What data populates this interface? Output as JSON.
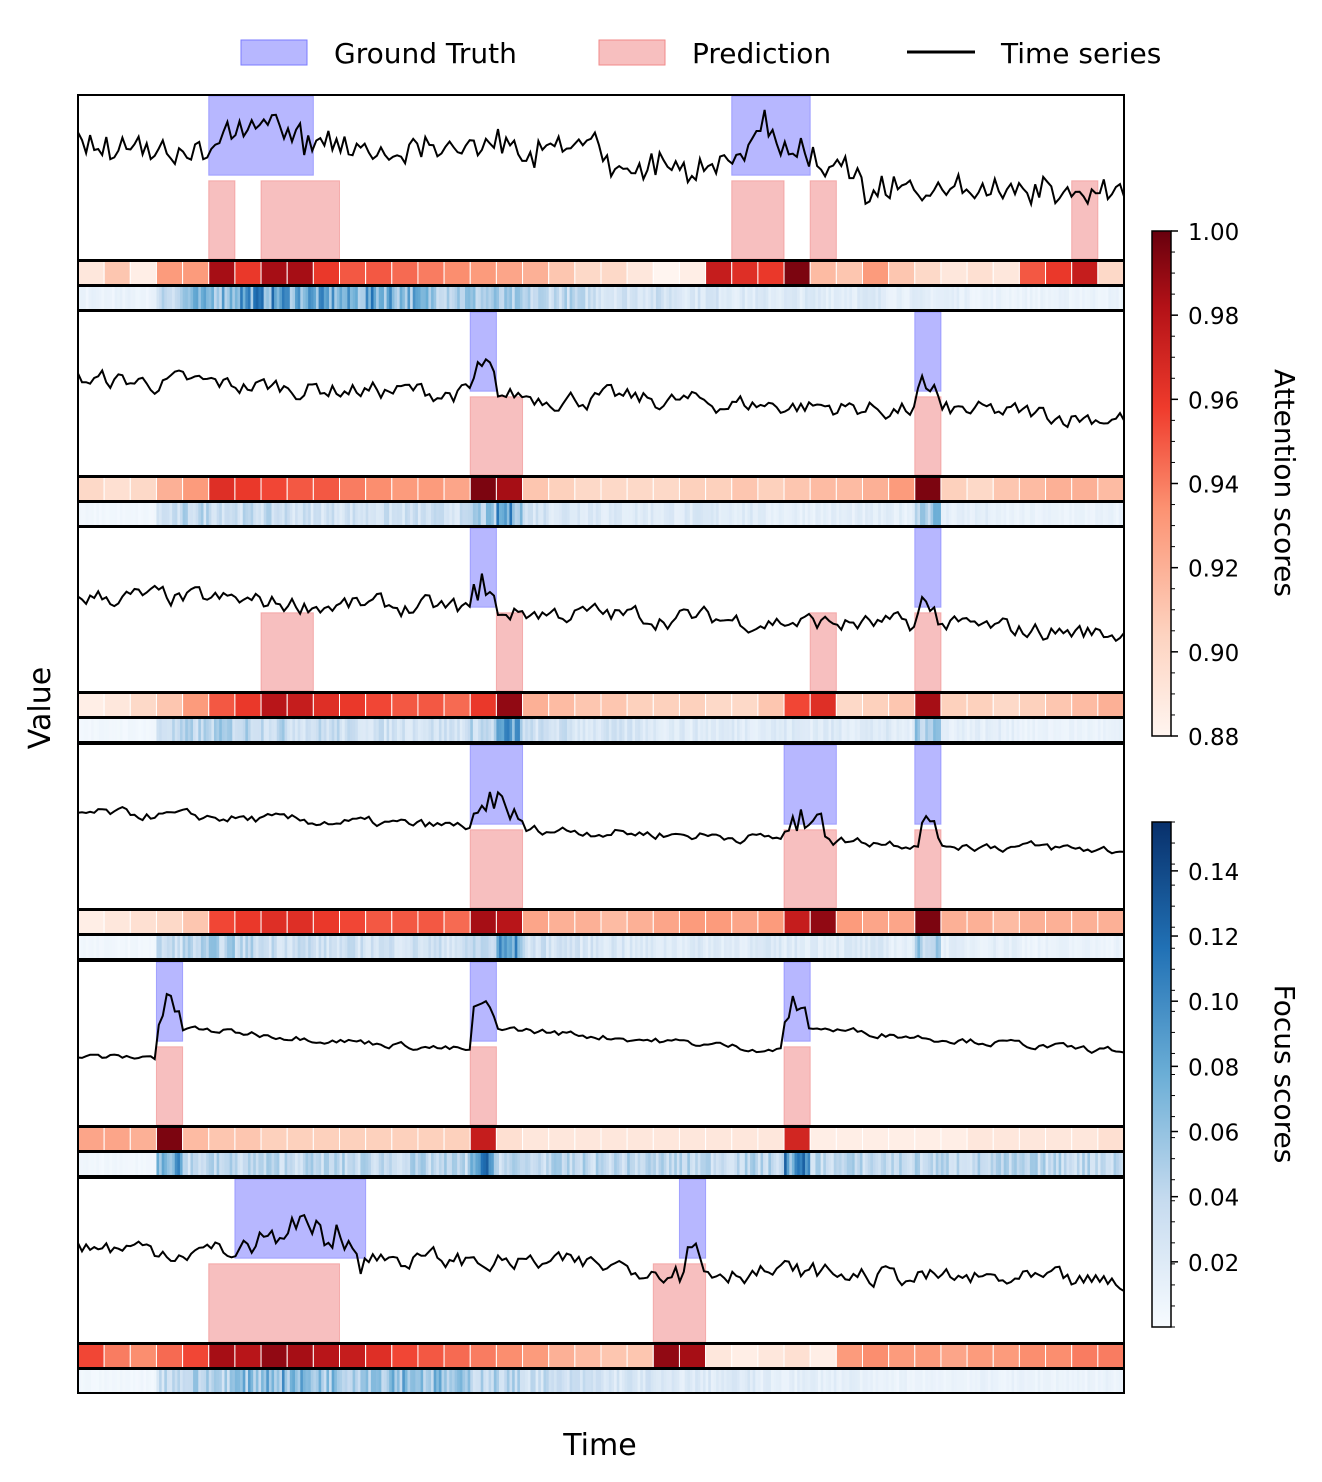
{
  "legend": {
    "ground_truth": "Ground Truth",
    "prediction": "Prediction",
    "time_series": "Time series"
  },
  "axes": {
    "xlabel": "Time",
    "ylabel": "Value"
  },
  "colorbars": {
    "attention": {
      "label": "Attention scores",
      "ticks": [
        "1.00",
        "0.98",
        "0.96",
        "0.94",
        "0.92",
        "0.90",
        "0.88"
      ],
      "range": [
        0.88,
        1.0
      ]
    },
    "focus": {
      "label": "Focus scores",
      "ticks": [
        "0.14",
        "0.12",
        "0.10",
        "0.08",
        "0.06",
        "0.04",
        "0.02"
      ],
      "range": [
        0.0,
        0.155
      ]
    }
  },
  "colors": {
    "ground_truth": "#7b7bff",
    "prediction": "#f08a8a",
    "series": "#000000"
  },
  "chart_data": {
    "type": "line",
    "x_range": [
      0,
      40
    ],
    "panels": [
      {
        "ground_truth": [
          [
            5,
            9
          ],
          [
            25,
            28
          ]
        ],
        "prediction": [
          [
            5,
            6
          ],
          [
            7,
            10
          ],
          [
            25,
            27
          ],
          [
            28,
            29
          ],
          [
            38,
            39
          ]
        ],
        "attention": [
          0.89,
          0.91,
          0.885,
          0.93,
          0.93,
          0.985,
          0.96,
          0.985,
          0.985,
          0.96,
          0.95,
          0.95,
          0.945,
          0.94,
          0.935,
          0.93,
          0.925,
          0.92,
          0.91,
          0.9,
          0.9,
          0.89,
          0.88,
          0.885,
          0.975,
          0.965,
          0.96,
          0.995,
          0.915,
          0.91,
          0.93,
          0.91,
          0.9,
          0.89,
          0.895,
          0.89,
          0.95,
          0.96,
          0.975,
          0.9
        ],
        "focus": [
          0.01,
          0.01,
          0.01,
          0.045,
          0.06,
          0.07,
          0.09,
          0.085,
          0.08,
          0.075,
          0.07,
          0.08,
          0.07,
          0.06,
          0.055,
          0.05,
          0.045,
          0.04,
          0.04,
          0.035,
          0.03,
          0.03,
          0.03,
          0.025,
          0.025,
          0.02,
          0.02,
          0.02,
          0.02,
          0.02,
          0.02,
          0.015,
          0.015,
          0.015,
          0.01,
          0.01,
          0.01,
          0.01,
          0.01,
          0.01
        ]
      },
      {
        "ground_truth": [
          [
            15,
            16
          ],
          [
            32,
            33
          ]
        ],
        "prediction": [
          [
            15,
            17
          ],
          [
            32,
            33
          ]
        ],
        "attention": [
          0.9,
          0.895,
          0.9,
          0.92,
          0.93,
          0.965,
          0.96,
          0.955,
          0.95,
          0.95,
          0.94,
          0.935,
          0.93,
          0.93,
          0.925,
          0.995,
          0.985,
          0.91,
          0.905,
          0.9,
          0.9,
          0.9,
          0.9,
          0.905,
          0.905,
          0.91,
          0.905,
          0.91,
          0.915,
          0.915,
          0.92,
          0.93,
          0.995,
          0.905,
          0.9,
          0.91,
          0.915,
          0.92,
          0.92,
          0.915
        ],
        "focus": [
          0.005,
          0.005,
          0.005,
          0.03,
          0.04,
          0.04,
          0.035,
          0.035,
          0.03,
          0.03,
          0.03,
          0.03,
          0.03,
          0.03,
          0.03,
          0.05,
          0.08,
          0.03,
          0.025,
          0.025,
          0.02,
          0.02,
          0.02,
          0.02,
          0.02,
          0.02,
          0.015,
          0.015,
          0.015,
          0.015,
          0.015,
          0.015,
          0.06,
          0.015,
          0.015,
          0.01,
          0.01,
          0.01,
          0.01,
          0.01
        ]
      },
      {
        "ground_truth": [
          [
            15,
            16
          ],
          [
            32,
            33
          ]
        ],
        "prediction": [
          [
            7,
            9
          ],
          [
            16,
            17
          ],
          [
            28,
            29
          ],
          [
            32,
            33
          ]
        ],
        "attention": [
          0.885,
          0.89,
          0.9,
          0.91,
          0.93,
          0.95,
          0.96,
          0.98,
          0.975,
          0.965,
          0.96,
          0.955,
          0.95,
          0.95,
          0.945,
          0.96,
          0.99,
          0.92,
          0.915,
          0.91,
          0.91,
          0.905,
          0.905,
          0.905,
          0.9,
          0.9,
          0.91,
          0.955,
          0.965,
          0.9,
          0.905,
          0.91,
          0.985,
          0.905,
          0.905,
          0.9,
          0.905,
          0.91,
          0.915,
          0.92
        ],
        "focus": [
          0.005,
          0.005,
          0.005,
          0.035,
          0.04,
          0.045,
          0.045,
          0.04,
          0.035,
          0.035,
          0.03,
          0.03,
          0.03,
          0.03,
          0.03,
          0.04,
          0.08,
          0.03,
          0.03,
          0.025,
          0.025,
          0.025,
          0.02,
          0.02,
          0.02,
          0.02,
          0.02,
          0.02,
          0.02,
          0.02,
          0.02,
          0.015,
          0.06,
          0.015,
          0.015,
          0.015,
          0.01,
          0.01,
          0.01,
          0.01
        ]
      },
      {
        "ground_truth": [
          [
            15,
            17
          ],
          [
            27,
            29
          ],
          [
            32,
            33
          ]
        ],
        "prediction": [
          [
            15,
            17
          ],
          [
            27,
            29
          ],
          [
            32,
            33
          ]
        ],
        "attention": [
          0.885,
          0.89,
          0.895,
          0.9,
          0.91,
          0.955,
          0.96,
          0.965,
          0.965,
          0.96,
          0.955,
          0.95,
          0.95,
          0.95,
          0.945,
          0.985,
          0.98,
          0.925,
          0.92,
          0.92,
          0.915,
          0.92,
          0.925,
          0.93,
          0.93,
          0.925,
          0.93,
          0.975,
          0.99,
          0.93,
          0.925,
          0.925,
          0.995,
          0.92,
          0.92,
          0.915,
          0.92,
          0.92,
          0.92,
          0.92
        ],
        "focus": [
          0.005,
          0.005,
          0.005,
          0.035,
          0.04,
          0.045,
          0.04,
          0.035,
          0.035,
          0.03,
          0.03,
          0.03,
          0.03,
          0.03,
          0.03,
          0.04,
          0.08,
          0.03,
          0.03,
          0.025,
          0.025,
          0.02,
          0.02,
          0.02,
          0.02,
          0.02,
          0.02,
          0.02,
          0.02,
          0.02,
          0.02,
          0.015,
          0.05,
          0.015,
          0.015,
          0.015,
          0.01,
          0.01,
          0.01,
          0.01
        ]
      },
      {
        "ground_truth": [
          [
            3,
            4
          ],
          [
            15,
            16
          ],
          [
            27,
            28
          ]
        ],
        "prediction": [
          [
            3,
            4
          ],
          [
            15,
            16
          ],
          [
            27,
            28
          ]
        ],
        "attention": [
          0.925,
          0.925,
          0.92,
          0.995,
          0.915,
          0.91,
          0.91,
          0.905,
          0.905,
          0.905,
          0.905,
          0.905,
          0.905,
          0.905,
          0.905,
          0.975,
          0.895,
          0.89,
          0.89,
          0.89,
          0.89,
          0.89,
          0.89,
          0.89,
          0.89,
          0.89,
          0.89,
          0.97,
          0.885,
          0.885,
          0.885,
          0.885,
          0.885,
          0.885,
          0.89,
          0.89,
          0.89,
          0.89,
          0.89,
          0.895
        ],
        "focus": [
          0.005,
          0.005,
          0.005,
          0.09,
          0.04,
          0.04,
          0.04,
          0.04,
          0.04,
          0.04,
          0.04,
          0.04,
          0.04,
          0.04,
          0.04,
          0.09,
          0.04,
          0.04,
          0.04,
          0.04,
          0.04,
          0.04,
          0.04,
          0.04,
          0.04,
          0.04,
          0.04,
          0.09,
          0.04,
          0.04,
          0.04,
          0.04,
          0.04,
          0.04,
          0.04,
          0.04,
          0.04,
          0.04,
          0.04,
          0.04
        ]
      },
      {
        "ground_truth": [
          [
            6,
            11
          ],
          [
            23,
            24
          ]
        ],
        "prediction": [
          [
            5,
            10
          ],
          [
            22,
            24
          ]
        ],
        "attention": [
          0.955,
          0.94,
          0.935,
          0.945,
          0.955,
          0.985,
          0.98,
          0.99,
          0.985,
          0.98,
          0.975,
          0.965,
          0.955,
          0.95,
          0.945,
          0.94,
          0.935,
          0.93,
          0.92,
          0.915,
          0.91,
          0.91,
          0.99,
          0.985,
          0.89,
          0.885,
          0.89,
          0.895,
          0.885,
          0.93,
          0.935,
          0.93,
          0.93,
          0.925,
          0.93,
          0.93,
          0.935,
          0.935,
          0.94,
          0.94
        ],
        "focus": [
          0.005,
          0.005,
          0.005,
          0.04,
          0.045,
          0.05,
          0.06,
          0.07,
          0.065,
          0.06,
          0.06,
          0.065,
          0.07,
          0.06,
          0.05,
          0.045,
          0.04,
          0.035,
          0.03,
          0.03,
          0.025,
          0.025,
          0.02,
          0.02,
          0.02,
          0.02,
          0.015,
          0.015,
          0.015,
          0.015,
          0.01,
          0.01,
          0.01,
          0.01,
          0.01,
          0.01,
          0.01,
          0.01,
          0.01,
          0.01
        ]
      }
    ]
  }
}
